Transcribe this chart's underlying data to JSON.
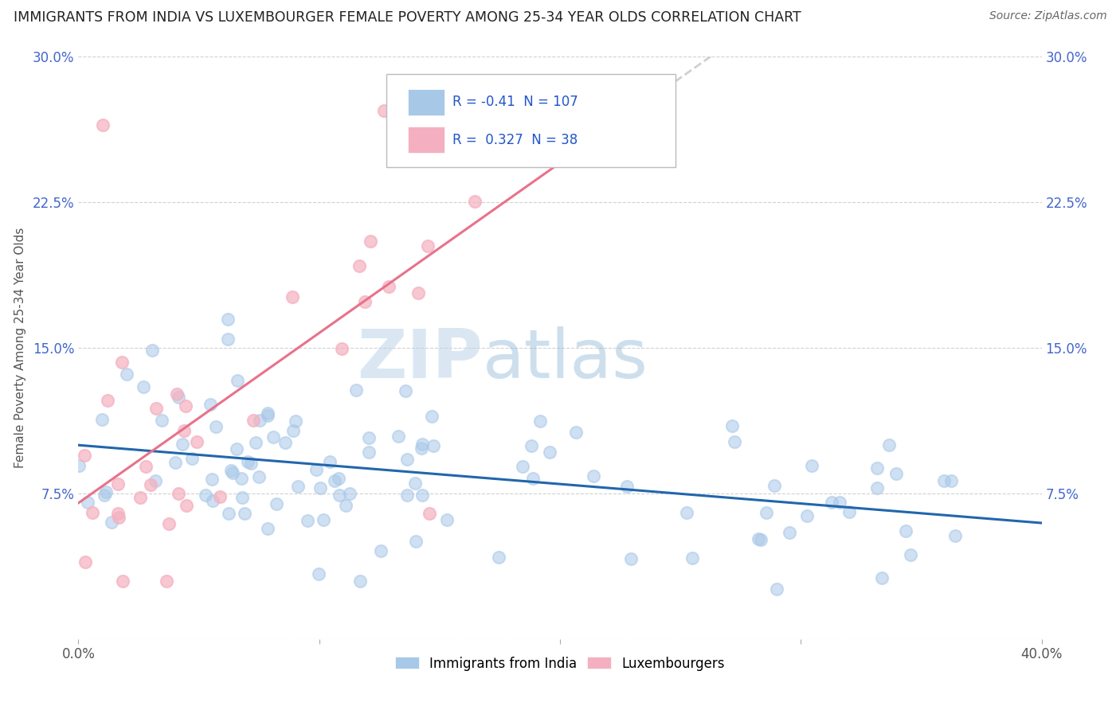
{
  "title": "IMMIGRANTS FROM INDIA VS LUXEMBOURGER FEMALE POVERTY AMONG 25-34 YEAR OLDS CORRELATION CHART",
  "source": "Source: ZipAtlas.com",
  "ylabel": "Female Poverty Among 25-34 Year Olds",
  "xlim": [
    0.0,
    0.4
  ],
  "ylim": [
    0.0,
    0.3
  ],
  "xticks": [
    0.0,
    0.1,
    0.2,
    0.3,
    0.4
  ],
  "xtick_labels_shown": [
    "0.0%",
    "",
    "",
    "",
    "40.0%"
  ],
  "yticks": [
    0.0,
    0.075,
    0.15,
    0.225,
    0.3
  ],
  "ytick_labels": [
    "",
    "7.5%",
    "15.0%",
    "22.5%",
    "30.0%"
  ],
  "blue_R": -0.41,
  "blue_N": 107,
  "pink_R": 0.327,
  "pink_N": 38,
  "blue_color": "#a8c8e8",
  "pink_color": "#f4b0c0",
  "blue_line_color": "#2166ac",
  "pink_line_color": "#e8728a",
  "dashed_line_color": "#d0d0d0",
  "watermark_color": "#c8dff0",
  "background_color": "#ffffff",
  "grid_color": "#cccccc",
  "axis_label_color": "#4466cc",
  "title_color": "#222222",
  "legend_text_color": "#222222",
  "legend_R_color": "#2255cc"
}
